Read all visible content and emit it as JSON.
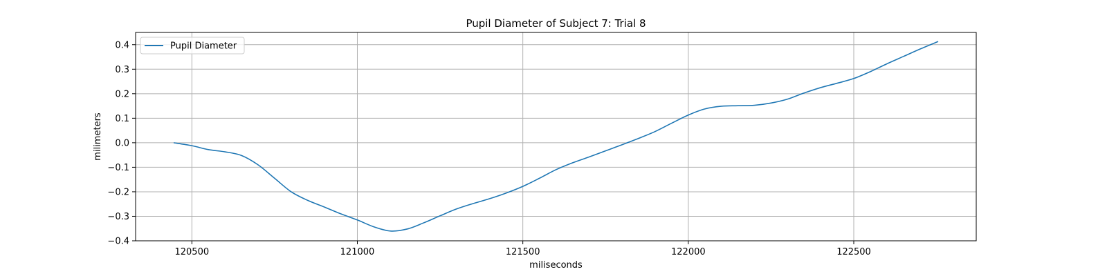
{
  "chart_data": {
    "type": "line",
    "title": "Pupil Diameter of Subject 7: Trial 8",
    "xlabel": "miliseconds",
    "ylabel": "milimeters",
    "xlim": [
      120330,
      122870
    ],
    "ylim": [
      -0.4,
      0.45
    ],
    "xticks": [
      120500,
      121000,
      121500,
      122000,
      122500
    ],
    "yticks": [
      -0.4,
      -0.3,
      -0.2,
      -0.1,
      0.0,
      0.1,
      0.2,
      0.3,
      0.4
    ],
    "ytick_labels": [
      "−0.4",
      "−0.3",
      "−0.2",
      "−0.1",
      "0.0",
      "0.1",
      "0.2",
      "0.3",
      "0.4"
    ],
    "grid": true,
    "legend_position": "top-left",
    "series": [
      {
        "name": "Pupil Diameter",
        "color": "#1f77b4",
        "x": [
          120445,
          120500,
          120550,
          120600,
          120650,
          120700,
          120750,
          120800,
          120850,
          120900,
          120950,
          121000,
          121050,
          121100,
          121150,
          121200,
          121250,
          121300,
          121350,
          121400,
          121450,
          121500,
          121550,
          121600,
          121650,
          121700,
          121750,
          121800,
          121850,
          121900,
          121950,
          122000,
          122050,
          122100,
          122150,
          122200,
          122250,
          122300,
          122350,
          122400,
          122450,
          122500,
          122550,
          122600,
          122650,
          122700,
          122755
        ],
        "y": [
          0.0,
          -0.012,
          -0.028,
          -0.037,
          -0.052,
          -0.09,
          -0.145,
          -0.2,
          -0.235,
          -0.262,
          -0.29,
          -0.315,
          -0.343,
          -0.36,
          -0.352,
          -0.327,
          -0.298,
          -0.27,
          -0.248,
          -0.228,
          -0.205,
          -0.178,
          -0.145,
          -0.11,
          -0.082,
          -0.058,
          -0.033,
          -0.008,
          0.018,
          0.046,
          0.08,
          0.113,
          0.138,
          0.149,
          0.151,
          0.153,
          0.162,
          0.178,
          0.203,
          0.225,
          0.243,
          0.262,
          0.29,
          0.322,
          0.352,
          0.382,
          0.413
        ]
      }
    ]
  }
}
